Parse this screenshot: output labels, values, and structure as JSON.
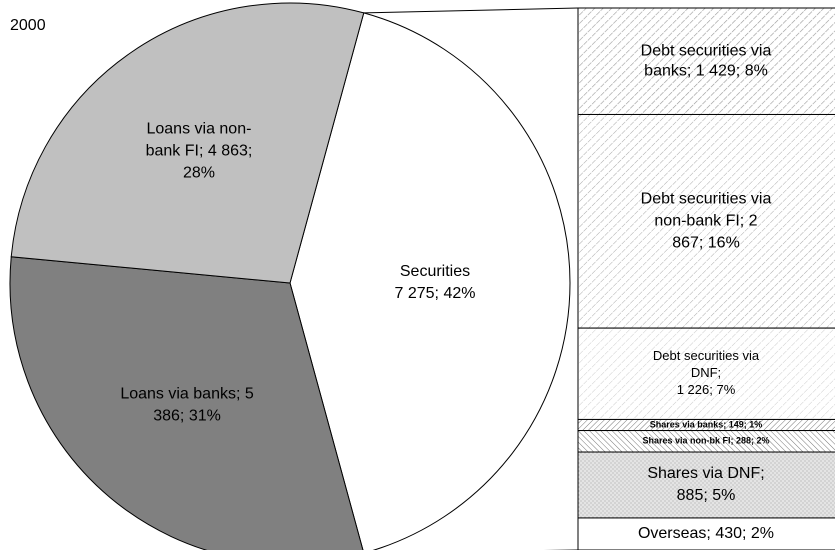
{
  "chart_data": {
    "type": "pie",
    "title": "2000",
    "values": [
      7275,
      5386,
      4863
    ],
    "value_labels": [
      [
        "Securities",
        "7 275; 42%"
      ],
      [
        "Loans via banks; 5",
        "386; 31%"
      ],
      [
        "Loans via non-",
        "bank FI; 4 863;",
        "28%"
      ]
    ],
    "colors": [
      "#ffffff",
      "#808080",
      "#c0c0c0"
    ],
    "bar": {
      "values": [
        1429,
        2867,
        1226,
        149,
        288,
        885,
        430
      ],
      "value_labels": [
        [
          "Debt securities via",
          "banks; 1 429; 8%"
        ],
        [
          "Debt securities via",
          "non-bank FI; 2",
          "867; 16%"
        ],
        [
          "Debt securities via",
          "DNF;",
          "1 226; 7%"
        ],
        [
          "Shares via banks; 149; 1%"
        ],
        [
          "Shares via non-bk FI; 288; 2%"
        ],
        [
          "Shares via DNF;",
          "885; 5%"
        ],
        [
          "Overseas; 430; 2%"
        ]
      ]
    }
  }
}
